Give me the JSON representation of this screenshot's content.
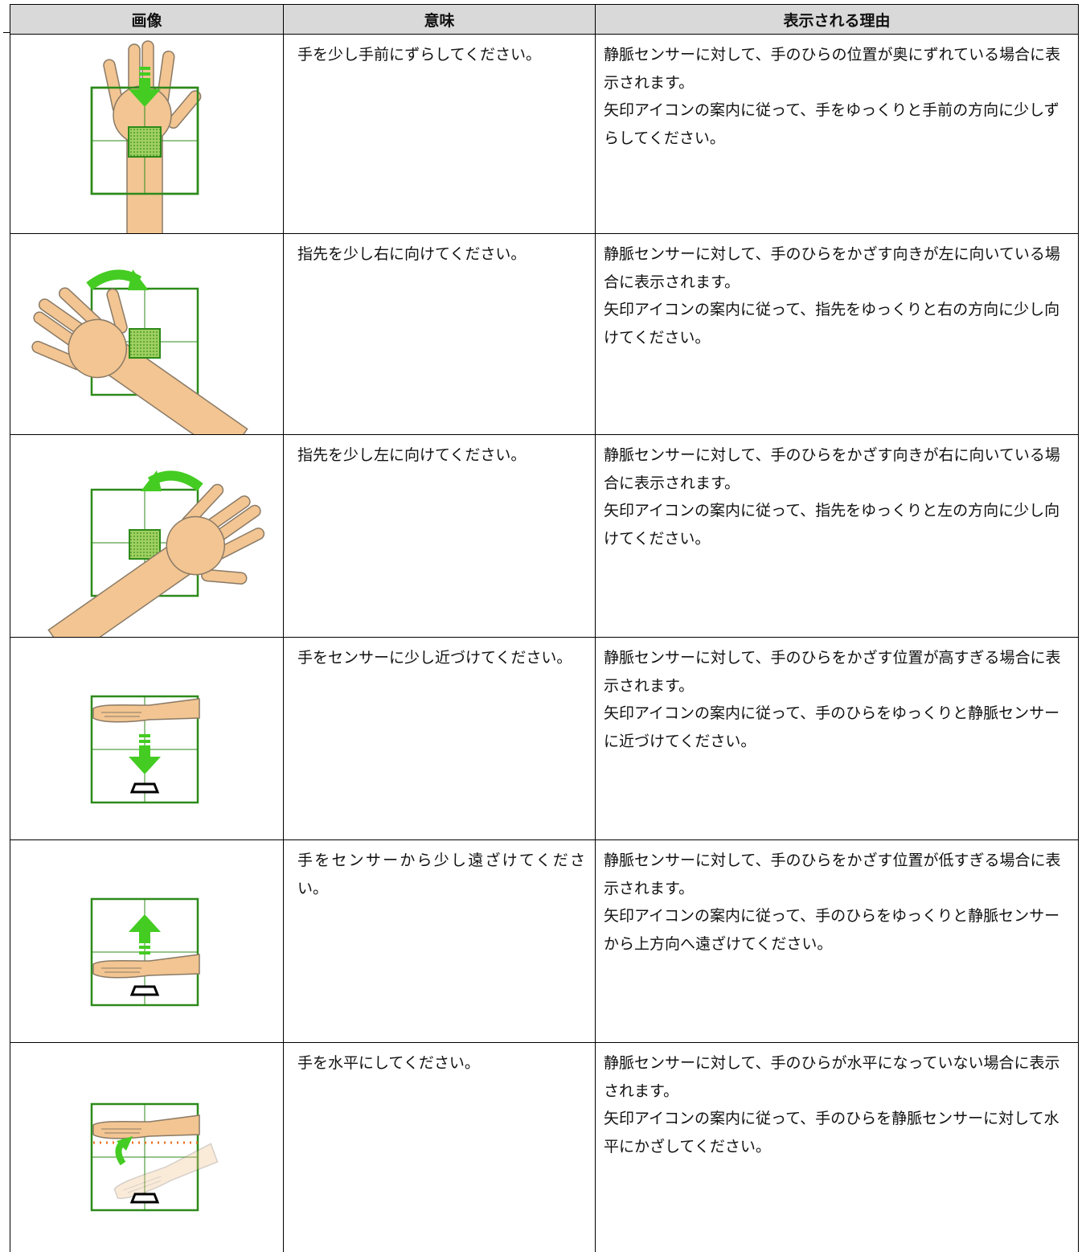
{
  "table": {
    "headers": [
      "画像",
      "意味",
      "表示される理由"
    ],
    "rows": [
      {
        "meaning": "手を少し手前にずらしてください。",
        "reason": [
          "静脈センサーに対して、手のひらの位置が奥にずれている場合に表示されます。",
          "矢印アイコンの案内に従って、手をゆっくりと手前の方向に少しずらしてください。"
        ]
      },
      {
        "meaning": "指先を少し右に向けてください。",
        "reason": [
          "静脈センサーに対して、手のひらをかざす向きが左に向いている場合に表示されます。",
          "矢印アイコンの案内に従って、指先をゆっくりと右の方向に少し向けてください。"
        ]
      },
      {
        "meaning": "指先を少し左に向けてください。",
        "reason": [
          "静脈センサーに対して、手のひらをかざす向きが右に向いている場合に表示されます。",
          "矢印アイコンの案内に従って、指先をゆっくりと左の方向に少し向けてください。"
        ]
      },
      {
        "meaning": "手をセンサーに少し近づけてください。",
        "reason": [
          "静脈センサーに対して、手のひらをかざす位置が高すぎる場合に表示されます。",
          "矢印アイコンの案内に従って、手のひらをゆっくりと静脈センサーに近づけてください。"
        ]
      },
      {
        "meaning": "手をセンサーから少し遠ざけてください。",
        "reason": [
          "静脈センサーに対して、手のひらをかざす位置が低すぎる場合に表示されます。",
          "矢印アイコンの案内に従って、手のひらをゆっくりと静脈センサーから上方向へ遠ざけてください。"
        ]
      },
      {
        "meaning": "手を水平にしてください。",
        "reason": [
          "静脈センサーに対して、手のひらが水平になっていない場合に表示されます。",
          "矢印アイコンの案内に従って、手のひらを静脈センサーに対して水平にかざしてください。"
        ]
      }
    ]
  }
}
